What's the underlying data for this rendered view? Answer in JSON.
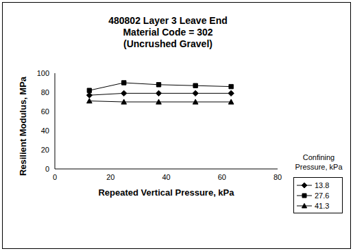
{
  "chart_data": {
    "type": "line",
    "title": "480802 Layer 3 Leave End",
    "subtitle": [
      "Material Code = 302",
      "(Uncrushed Gravel)"
    ],
    "x_label": "Repeated Vertical Pressure, kPa",
    "y_label": "Resilient Modulus, MPa",
    "legend_title": "Confining Pressure, kPa",
    "legend": "right",
    "grid": false,
    "x": [
      12.4,
      24.8,
      37.3,
      50.5,
      63.3
    ],
    "xlim": [
      0,
      80
    ],
    "xticks": [
      0,
      20,
      40,
      60,
      80
    ],
    "ylim": [
      0,
      100
    ],
    "yticks": [
      0,
      20,
      40,
      60,
      80,
      100
    ],
    "series": [
      {
        "name": "13.8",
        "color": "#000000",
        "marker": "diamond",
        "values": [
          77,
          79,
          79,
          79,
          79
        ]
      },
      {
        "name": "27.6",
        "color": "#000000",
        "marker": "square",
        "values": [
          82,
          90,
          88,
          87,
          86
        ]
      },
      {
        "name": "41.3",
        "color": "#000000",
        "marker": "triangle",
        "values": [
          71,
          70,
          70,
          70,
          70
        ]
      }
    ]
  }
}
